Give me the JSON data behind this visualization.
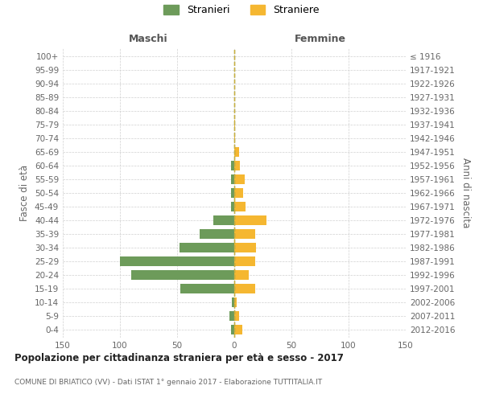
{
  "age_groups": [
    "0-4",
    "5-9",
    "10-14",
    "15-19",
    "20-24",
    "25-29",
    "30-34",
    "35-39",
    "40-44",
    "45-49",
    "50-54",
    "55-59",
    "60-64",
    "65-69",
    "70-74",
    "75-79",
    "80-84",
    "85-89",
    "90-94",
    "95-99",
    "100+"
  ],
  "birth_years": [
    "2012-2016",
    "2007-2011",
    "2002-2006",
    "1997-2001",
    "1992-1996",
    "1987-1991",
    "1982-1986",
    "1977-1981",
    "1972-1976",
    "1967-1971",
    "1962-1966",
    "1957-1961",
    "1952-1956",
    "1947-1951",
    "1942-1946",
    "1937-1941",
    "1932-1936",
    "1927-1931",
    "1922-1926",
    "1917-1921",
    "≤ 1916"
  ],
  "males": [
    3,
    4,
    2,
    47,
    90,
    100,
    48,
    30,
    18,
    3,
    3,
    3,
    3,
    0,
    0,
    0,
    0,
    0,
    0,
    0,
    0
  ],
  "females": [
    7,
    4,
    2,
    18,
    13,
    18,
    19,
    18,
    28,
    10,
    8,
    9,
    5,
    4,
    1,
    1,
    0,
    0,
    0,
    0,
    0
  ],
  "male_color": "#6d9b5a",
  "female_color": "#f5b731",
  "male_label": "Stranieri",
  "female_label": "Straniere",
  "title": "Popolazione per cittadinanza straniera per età e sesso - 2017",
  "subtitle": "COMUNE DI BRIATICO (VV) - Dati ISTAT 1° gennaio 2017 - Elaborazione TUTTITALIA.IT",
  "header_left": "Maschi",
  "header_right": "Femmine",
  "ylabel_left": "Fasce di età",
  "ylabel_right": "Anni di nascita",
  "xlim": 150,
  "bg_color": "#ffffff",
  "grid_color": "#d0d0d0",
  "text_color": "#666666",
  "title_color": "#222222",
  "header_color": "#555555"
}
